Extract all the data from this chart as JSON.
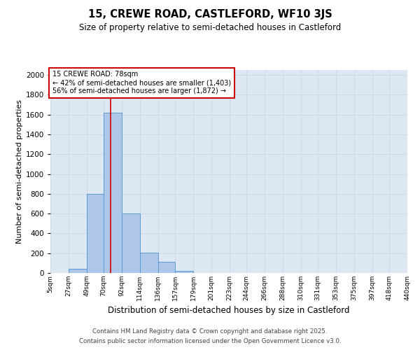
{
  "title": "15, CREWE ROAD, CASTLEFORD, WF10 3JS",
  "subtitle": "Size of property relative to semi-detached houses in Castleford",
  "xlabel": "Distribution of semi-detached houses by size in Castleford",
  "ylabel": "Number of semi-detached properties",
  "bin_edges": [
    5,
    27,
    49,
    70,
    92,
    114,
    136,
    157,
    179,
    201,
    223,
    244,
    266,
    288,
    310,
    331,
    353,
    375,
    397,
    418,
    440
  ],
  "bar_heights": [
    0,
    45,
    800,
    1620,
    600,
    205,
    115,
    20,
    0,
    0,
    0,
    0,
    0,
    0,
    0,
    0,
    0,
    0,
    0,
    0
  ],
  "bar_color": "#aec6e8",
  "bar_edge_color": "#5b9bd5",
  "grid_color": "#c8d8e8",
  "bg_color": "#dde8f4",
  "property_size": 78,
  "vline_color": "#cc0000",
  "annotation_line1": "15 CREWE ROAD: 78sqm",
  "annotation_line2": "← 42% of semi-detached houses are smaller (1,403)",
  "annotation_line3": "56% of semi-detached houses are larger (1,872) →",
  "annotation_box_color": "#cc0000",
  "ylim": [
    0,
    2050
  ],
  "tick_labels": [
    "5sqm",
    "27sqm",
    "49sqm",
    "70sqm",
    "92sqm",
    "114sqm",
    "136sqm",
    "157sqm",
    "179sqm",
    "201sqm",
    "223sqm",
    "244sqm",
    "266sqm",
    "288sqm",
    "310sqm",
    "331sqm",
    "353sqm",
    "375sqm",
    "397sqm",
    "418sqm",
    "440sqm"
  ],
  "footnote1": "Contains HM Land Registry data © Crown copyright and database right 2025.",
  "footnote2": "Contains public sector information licensed under the Open Government Licence v3.0."
}
